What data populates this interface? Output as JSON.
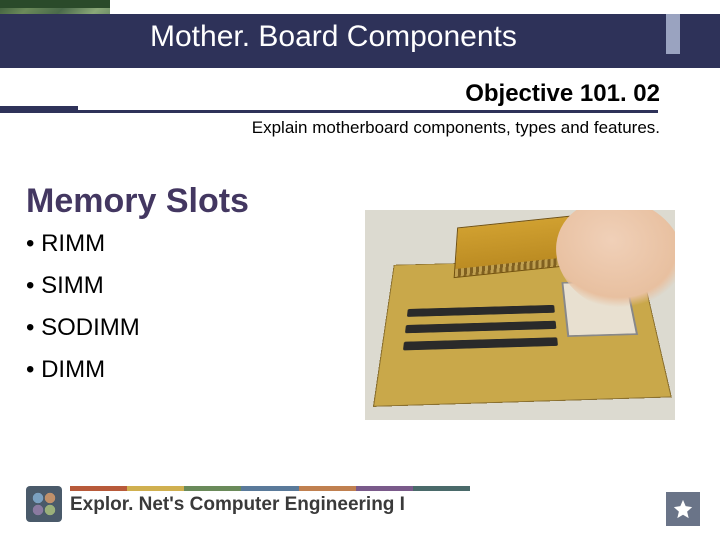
{
  "header": {
    "title": "Mother. Board Components",
    "band_color": "#2e3259",
    "accent_color": "#9aa3c0"
  },
  "objective": {
    "title": "Objective 101. 02",
    "description": "Explain motherboard components, types and features."
  },
  "section": {
    "heading": "Memory Slots",
    "heading_color": "#433761"
  },
  "bullets": [
    "• RIMM",
    "• SIMM",
    "• SODIMM",
    "• DIMM"
  ],
  "footer": {
    "text": "Explor. Net's Computer Engineering I",
    "stripe_colors": [
      "#b85a3a",
      "#d0b050",
      "#6a8a5a",
      "#5a7a9a",
      "#c08050",
      "#7a5a8a",
      "#4a6a6a"
    ]
  },
  "badge": {
    "bg_color": "#6a7488",
    "star_color": "#ffffff"
  }
}
